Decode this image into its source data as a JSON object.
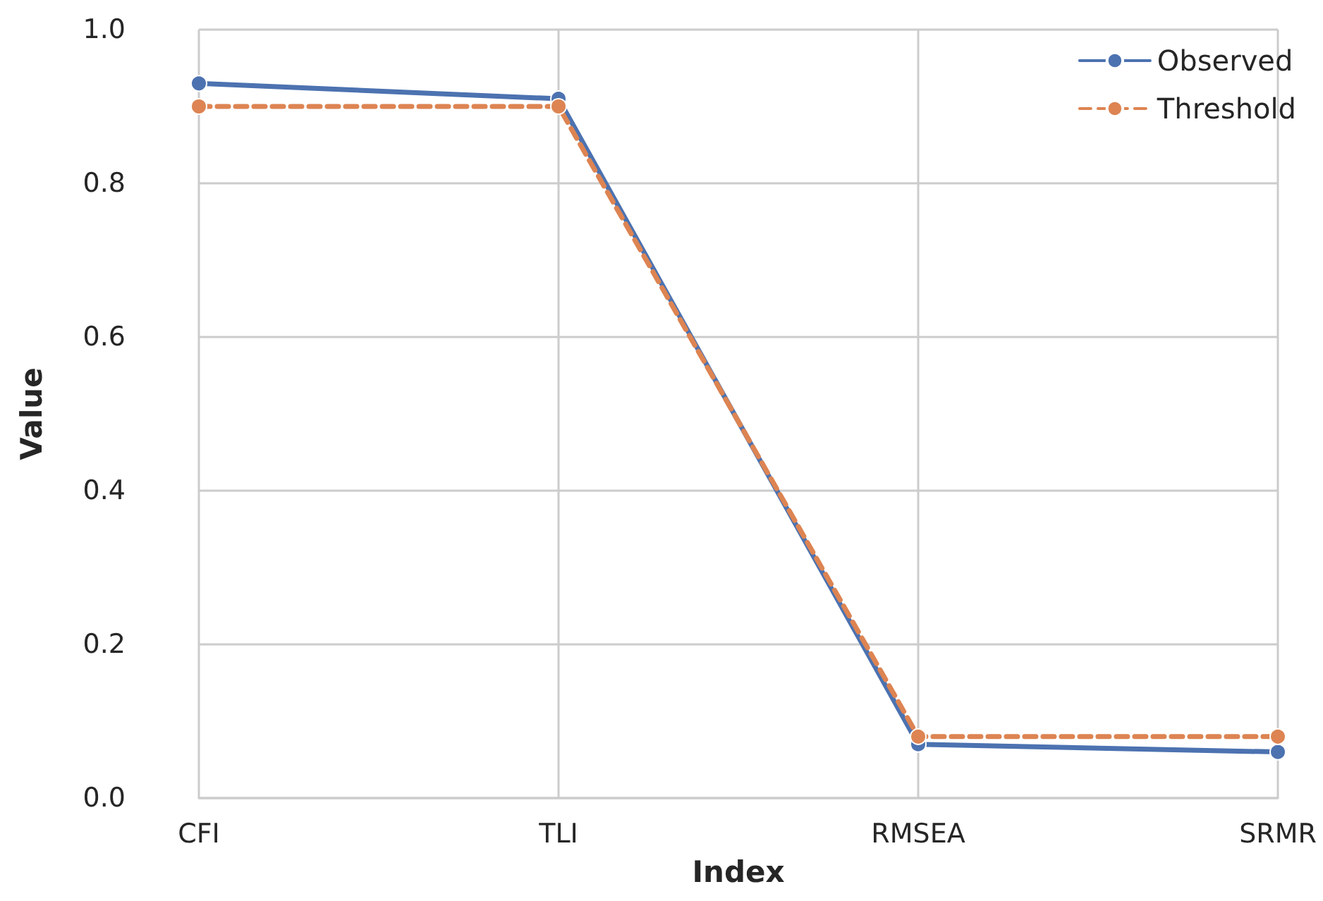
{
  "chart_data": {
    "type": "line",
    "xlabel": "Index",
    "ylabel": "Value",
    "categories": [
      "CFI",
      "TLI",
      "RMSEA",
      "SRMR"
    ],
    "series": [
      {
        "name": "Observed",
        "color": "#4c72b0",
        "values": [
          0.93,
          0.91,
          0.07,
          0.06
        ],
        "line_style": "solid"
      },
      {
        "name": "Threshold",
        "color": "#dd8452",
        "values": [
          0.9,
          0.9,
          0.08,
          0.08
        ],
        "line_style": "dashed"
      }
    ],
    "ylim": [
      0,
      1
    ],
    "yticks": [
      {
        "value": 0,
        "label": "0.0"
      },
      0.2,
      0.4,
      0.6,
      0.8,
      {
        "value": 1,
        "label": "1.0"
      }
    ],
    "grid": true,
    "legend": "top right",
    "marker": "circle"
  }
}
